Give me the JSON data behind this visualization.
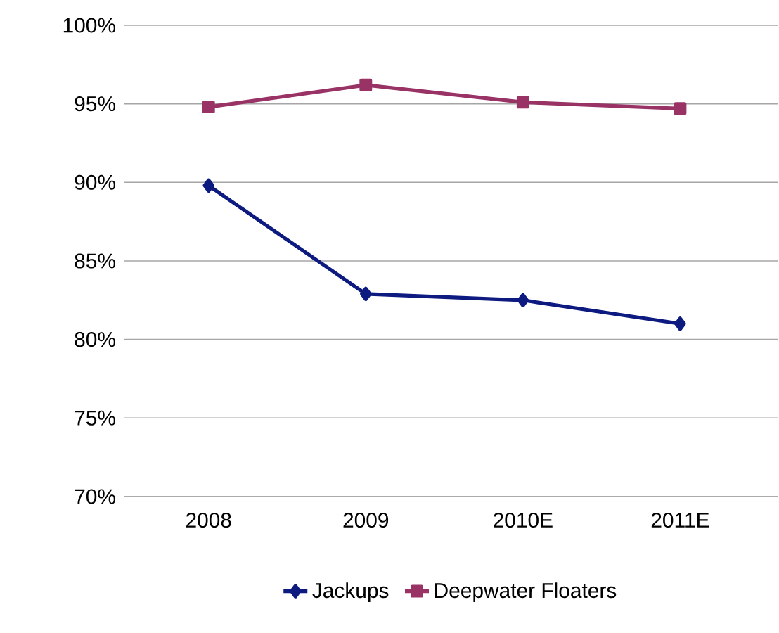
{
  "chart_data": {
    "type": "line",
    "categories": [
      "2008",
      "2009",
      "2010E",
      "2011E"
    ],
    "series": [
      {
        "name": "Jackups",
        "color": "#0d1a80",
        "marker": "diamond",
        "values": [
          89.8,
          82.9,
          82.5,
          81.0
        ]
      },
      {
        "name": "Deepwater Floaters",
        "color": "#993366",
        "marker": "square",
        "values": [
          94.8,
          96.2,
          95.1,
          94.7
        ]
      }
    ],
    "ylim": [
      70,
      100
    ],
    "yticks": [
      {
        "value": 70,
        "label": "70%"
      },
      {
        "value": 75,
        "label": "75%"
      },
      {
        "value": 80,
        "label": "80%"
      },
      {
        "value": 85,
        "label": "85%"
      },
      {
        "value": 90,
        "label": "90%"
      },
      {
        "value": 95,
        "label": "95%"
      },
      {
        "value": 100,
        "label": "100%"
      }
    ],
    "grid": "y",
    "legend": "bottom",
    "line_style": "solid"
  }
}
